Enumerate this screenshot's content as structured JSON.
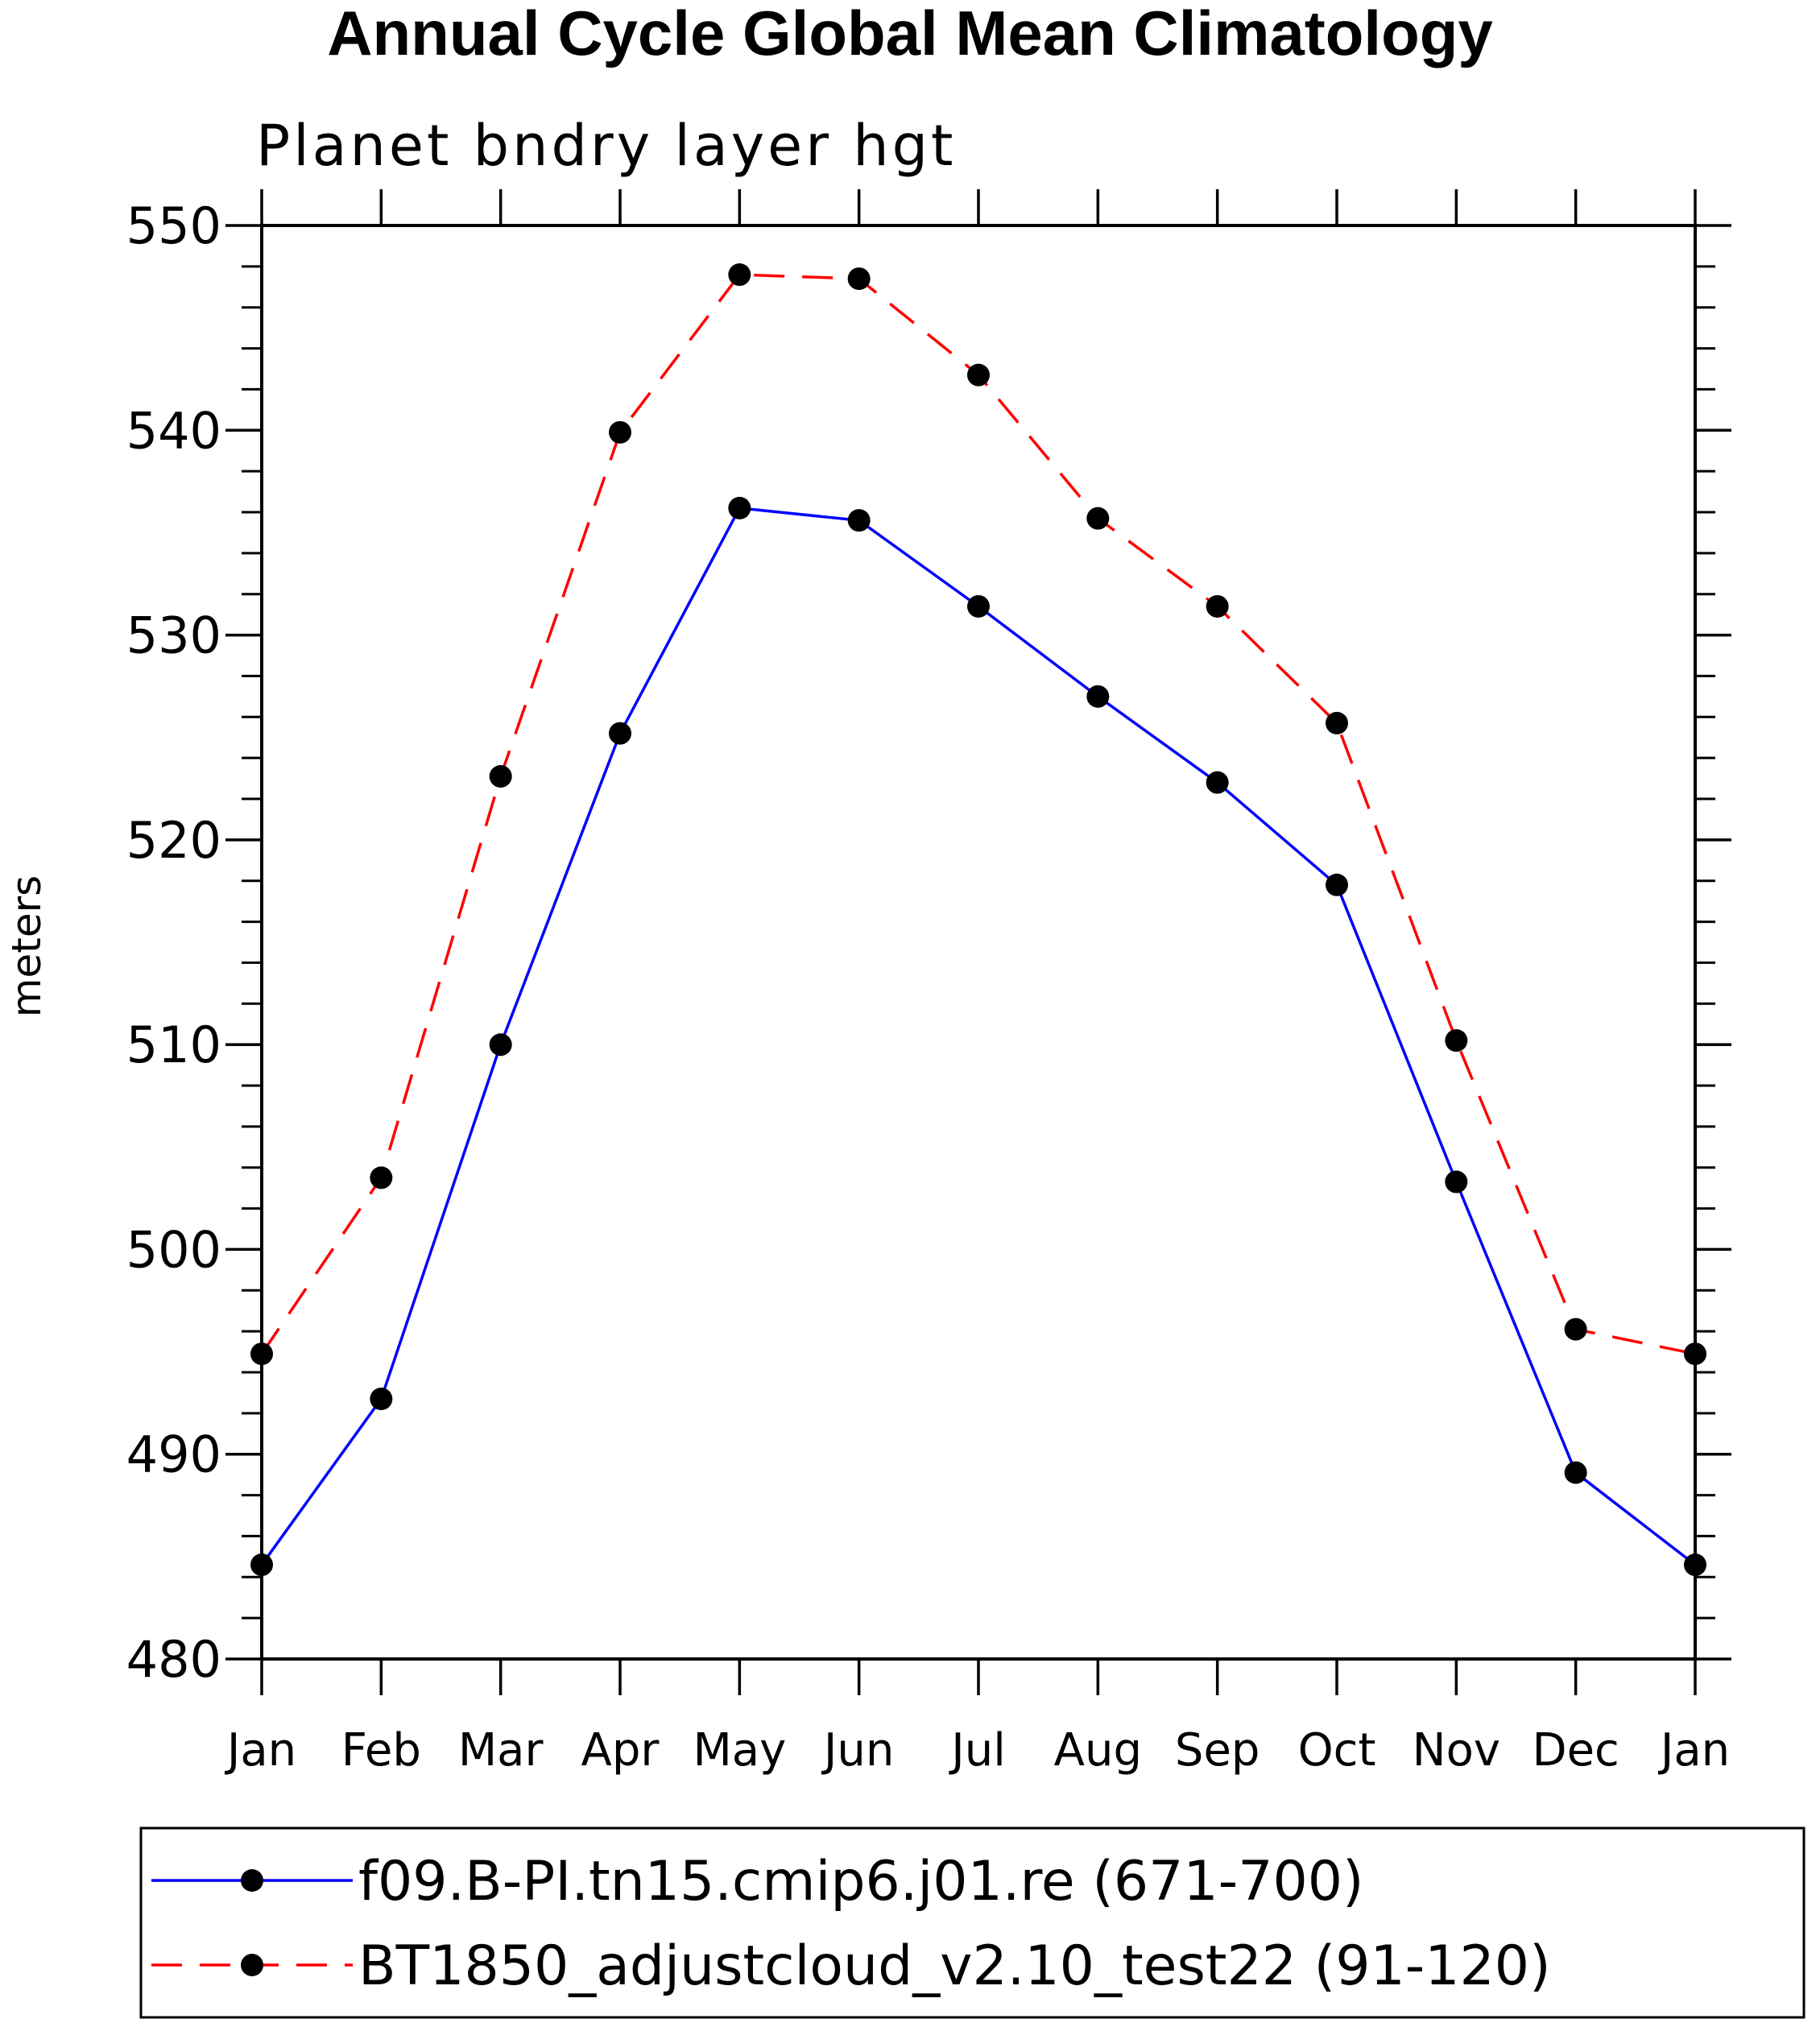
{
  "chart_data": {
    "type": "line",
    "title": "Annual Cycle Global Mean Climatology",
    "subtitle": "Planet bndry layer hgt",
    "ylabel": "meters",
    "xlabel": "",
    "categories": [
      "Jan",
      "Feb",
      "Mar",
      "Apr",
      "May",
      "Jun",
      "Jul",
      "Aug",
      "Sep",
      "Oct",
      "Nov",
      "Dec",
      "Jan"
    ],
    "ylim": [
      480,
      550
    ],
    "yticks": [
      480,
      490,
      500,
      510,
      520,
      530,
      540,
      550
    ],
    "yminor_step": 2,
    "grid": false,
    "legend_position": "bottom",
    "series": [
      {
        "name": "f09.B-PI.tn15.cmip6.j01.re (671-700)",
        "color": "#0000ff",
        "line_style": "solid",
        "marker": "filled-circle",
        "values": [
          484.6,
          492.7,
          510.0,
          525.2,
          536.2,
          535.6,
          531.4,
          527.0,
          522.8,
          517.8,
          503.3,
          489.1,
          484.6
        ]
      },
      {
        "name": "BT1850_adjustcloud_v2.10_test22 (91-120)",
        "color": "#ff0000",
        "line_style": "dashed",
        "marker": "filled-circle",
        "values": [
          494.9,
          503.5,
          523.1,
          539.9,
          547.6,
          547.4,
          542.7,
          535.7,
          531.4,
          525.7,
          510.2,
          496.1,
          494.9
        ]
      }
    ]
  }
}
